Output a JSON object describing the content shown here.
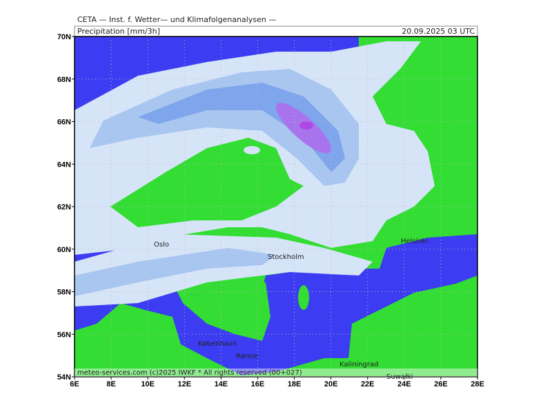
{
  "header": {
    "institute": "CETA — Inst. f. Wetter— und Klimafolgenanalysen —",
    "field": "Precipitation [mm/3h]",
    "valid_time": "20.09.2025 03 UTC"
  },
  "axes": {
    "lon_labels": [
      "6E",
      "8E",
      "10E",
      "12E",
      "14E",
      "16E",
      "18E",
      "20E",
      "22E",
      "24E",
      "26E",
      "28E"
    ],
    "lat_labels": [
      "54N",
      "56N",
      "58N",
      "60N",
      "62N",
      "64N",
      "66N",
      "68N",
      "70N"
    ]
  },
  "places": [
    {
      "name": "Oslo"
    },
    {
      "name": "Stockholm"
    },
    {
      "name": "Helsinki"
    },
    {
      "name": "København"
    },
    {
      "name": "Rønne"
    },
    {
      "name": "Kaliningrad"
    },
    {
      "name": "Suwałki"
    }
  ],
  "footer": "meteo-services.com (c)2025 IWKF * All rights reserved (00+027)"
}
